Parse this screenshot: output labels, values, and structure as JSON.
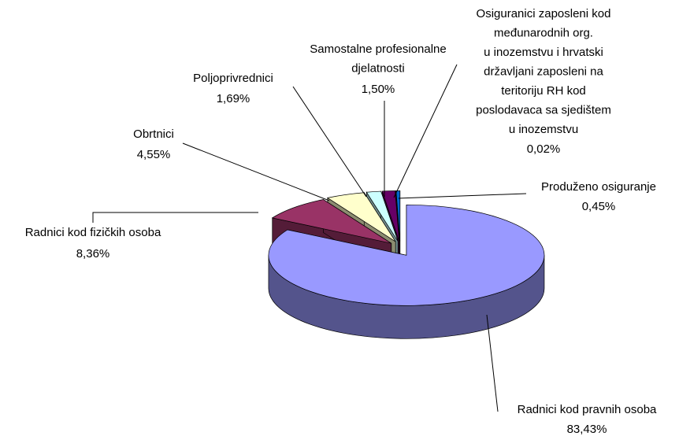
{
  "chart_data": {
    "type": "pie3d",
    "categories": [
      "Radnici kod pravnih osoba",
      "Radnici kod fizičkih osoba",
      "Obrtnici",
      "Poljoprivrednici",
      "Samostalne profesionalne\ndjelatnosti",
      "Osiguranici zaposleni kod\nmeđunarodnih org.\nu inozemstvu i hrvatski\ndržavljani zaposleni na\nteritoriju RH kod\nposlodavaca sa sjedištem\nu inozemstvu",
      "Produženo osiguranje"
    ],
    "values": [
      83.43,
      8.36,
      4.55,
      1.69,
      1.5,
      0.02,
      0.45
    ],
    "value_labels": [
      "83,43%",
      "8,36%",
      "4,55%",
      "1,69%",
      "1,50%",
      "0,02%",
      "0,45%"
    ],
    "colors": [
      "#9999ff",
      "#993366",
      "#ffffcc",
      "#ccffff",
      "#660066",
      "#ff8080",
      "#0066cc"
    ]
  }
}
